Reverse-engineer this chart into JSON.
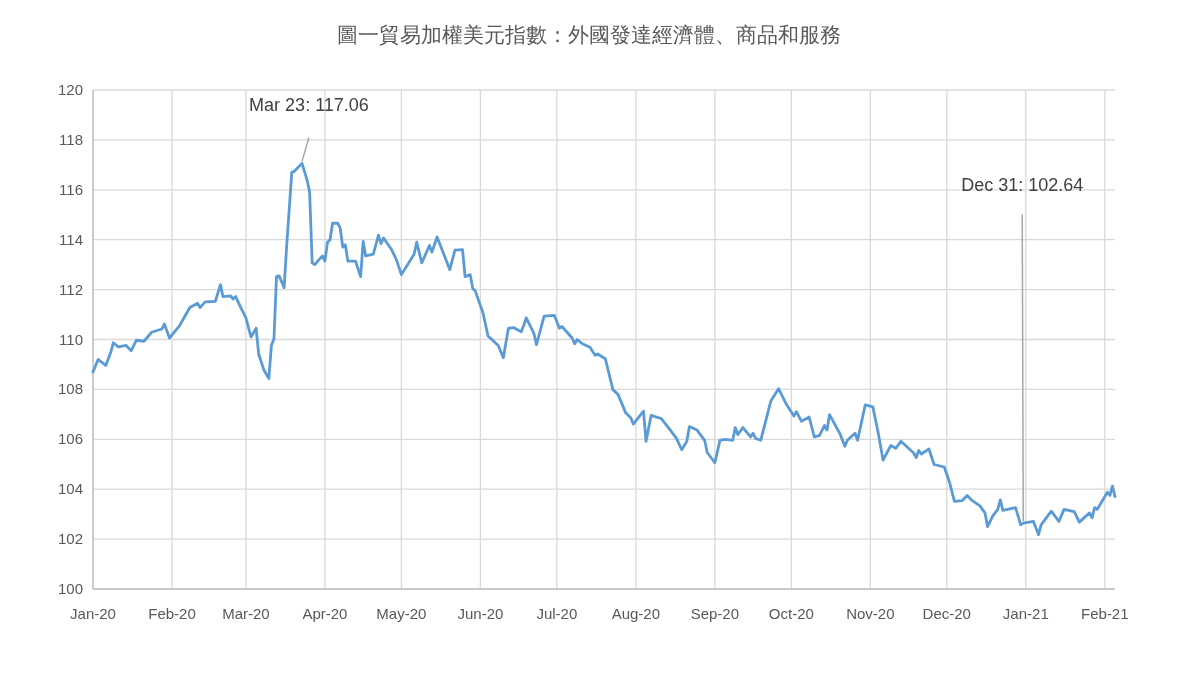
{
  "chart_data": {
    "type": "line",
    "title": "圖一貿易加權美元指數：外國發達經濟體、商品和服務",
    "color": "#5b9bd5",
    "grid": true,
    "x": [
      "2020-01-01",
      "2020-01-03",
      "2020-01-06",
      "2020-01-08",
      "2020-01-09",
      "2020-01-11",
      "2020-01-14",
      "2020-01-16",
      "2020-01-18",
      "2020-01-21",
      "2020-01-24",
      "2020-01-28",
      "2020-01-29",
      "2020-01-31",
      "2020-02-04",
      "2020-02-08",
      "2020-02-11",
      "2020-02-12",
      "2020-02-14",
      "2020-02-18",
      "2020-02-20",
      "2020-02-21",
      "2020-02-24",
      "2020-02-25",
      "2020-02-26",
      "2020-02-28",
      "2020-03-01",
      "2020-03-03",
      "2020-03-05",
      "2020-03-06",
      "2020-03-08",
      "2020-03-10",
      "2020-03-11",
      "2020-03-12",
      "2020-03-13",
      "2020-03-14",
      "2020-03-16",
      "2020-03-17",
      "2020-03-19",
      "2020-03-20",
      "2020-03-23",
      "2020-03-25",
      "2020-03-26",
      "2020-03-27",
      "2020-03-28",
      "2020-03-31",
      "2020-04-01",
      "2020-04-02",
      "2020-04-03",
      "2020-04-04",
      "2020-04-06",
      "2020-04-07",
      "2020-04-08",
      "2020-04-09",
      "2020-04-10",
      "2020-04-13",
      "2020-04-15",
      "2020-04-16",
      "2020-04-17",
      "2020-04-20",
      "2020-04-22",
      "2020-04-23",
      "2020-04-24",
      "2020-04-27",
      "2020-04-29",
      "2020-05-01",
      "2020-05-06",
      "2020-05-07",
      "2020-05-09",
      "2020-05-12",
      "2020-05-13",
      "2020-05-15",
      "2020-05-20",
      "2020-05-22",
      "2020-05-25",
      "2020-05-26",
      "2020-05-28",
      "2020-05-29",
      "2020-05-30",
      "2020-06-02",
      "2020-06-04",
      "2020-06-08",
      "2020-06-10",
      "2020-06-12",
      "2020-06-14",
      "2020-06-17",
      "2020-06-18",
      "2020-06-19",
      "2020-06-22",
      "2020-06-23",
      "2020-06-26",
      "2020-06-30",
      "2020-07-02",
      "2020-07-03",
      "2020-07-07",
      "2020-07-08",
      "2020-07-09",
      "2020-07-11",
      "2020-07-14",
      "2020-07-16",
      "2020-07-17",
      "2020-07-20",
      "2020-07-23",
      "2020-07-25",
      "2020-07-28",
      "2020-07-30",
      "2020-07-31",
      "2020-08-04",
      "2020-08-05",
      "2020-08-07",
      "2020-08-11",
      "2020-08-14",
      "2020-08-17",
      "2020-08-19",
      "2020-08-21",
      "2020-08-22",
      "2020-08-25",
      "2020-08-28",
      "2020-08-29",
      "2020-09-01",
      "2020-09-03",
      "2020-09-05",
      "2020-09-08",
      "2020-09-09",
      "2020-09-10",
      "2020-09-12",
      "2020-09-15",
      "2020-09-16",
      "2020-09-17",
      "2020-09-19",
      "2020-09-23",
      "2020-09-26",
      "2020-09-29",
      "2020-10-02",
      "2020-10-03",
      "2020-10-05",
      "2020-10-08",
      "2020-10-10",
      "2020-10-12",
      "2020-10-14",
      "2020-10-15",
      "2020-10-16",
      "2020-10-20",
      "2020-10-22",
      "2020-10-23",
      "2020-10-26",
      "2020-10-27",
      "2020-10-30",
      "2020-11-02",
      "2020-11-04",
      "2020-11-06",
      "2020-11-09",
      "2020-11-11",
      "2020-11-13",
      "2020-11-18",
      "2020-11-19",
      "2020-11-20",
      "2020-11-21",
      "2020-11-24",
      "2020-11-26",
      "2020-11-30",
      "2020-12-02",
      "2020-12-04",
      "2020-12-07",
      "2020-12-09",
      "2020-12-11",
      "2020-12-14",
      "2020-12-16",
      "2020-12-17",
      "2020-12-19",
      "2020-12-21",
      "2020-12-22",
      "2020-12-23",
      "2020-12-28",
      "2020-12-30",
      "2020-12-31",
      "2021-01-04",
      "2021-01-06",
      "2021-01-07",
      "2021-01-11",
      "2021-01-14",
      "2021-01-16",
      "2021-01-20",
      "2021-01-22",
      "2021-01-26",
      "2021-01-27",
      "2021-01-28",
      "2021-01-29",
      "2021-02-02",
      "2021-02-03",
      "2021-02-04",
      "2021-02-05"
    ],
    "values": [
      108.7,
      109.2,
      108.96,
      109.5,
      109.87,
      109.7,
      109.76,
      109.55,
      109.97,
      109.93,
      110.29,
      110.42,
      110.62,
      110.06,
      110.56,
      111.28,
      111.45,
      111.28,
      111.51,
      111.53,
      112.2,
      111.72,
      111.75,
      111.62,
      111.72,
      111.28,
      110.87,
      110.1,
      110.45,
      109.42,
      108.79,
      108.44,
      109.76,
      110.03,
      112.52,
      112.55,
      112.08,
      113.77,
      116.7,
      116.74,
      117.06,
      116.39,
      115.9,
      113.07,
      113.0,
      113.35,
      113.14,
      113.9,
      114.0,
      114.66,
      114.66,
      114.46,
      113.7,
      113.8,
      113.14,
      113.14,
      112.52,
      113.93,
      113.35,
      113.42,
      114.18,
      113.84,
      114.07,
      113.63,
      113.21,
      112.6,
      113.42,
      113.9,
      113.07,
      113.77,
      113.5,
      114.11,
      112.8,
      113.58,
      113.6,
      112.52,
      112.6,
      112.04,
      111.94,
      111.07,
      110.14,
      109.76,
      109.27,
      110.45,
      110.48,
      110.31,
      110.56,
      110.87,
      110.25,
      109.79,
      110.94,
      110.97,
      110.45,
      110.52,
      110.06,
      109.83,
      110.0,
      109.83,
      109.69,
      109.37,
      109.42,
      109.23,
      107.99,
      107.8,
      107.06,
      106.86,
      106.61,
      107.13,
      105.92,
      106.96,
      106.83,
      106.44,
      106.03,
      105.58,
      105.92,
      106.51,
      106.37,
      105.96,
      105.47,
      105.06,
      105.96,
      106.0,
      105.96,
      106.47,
      106.19,
      106.47,
      106.1,
      106.24,
      106.03,
      105.96,
      107.55,
      108.03,
      107.41,
      106.93,
      107.11,
      106.72,
      106.89,
      106.1,
      106.15,
      106.55,
      106.37,
      106.99,
      106.24,
      105.72,
      105.96,
      106.24,
      105.96,
      107.38,
      107.3,
      106.3,
      105.17,
      105.75,
      105.64,
      105.92,
      105.45,
      105.27,
      105.55,
      105.41,
      105.61,
      104.99,
      104.89,
      104.3,
      103.51,
      103.54,
      103.75,
      103.54,
      103.33,
      103.05,
      102.5,
      102.92,
      103.19,
      103.57,
      103.15,
      103.26,
      102.57,
      102.64,
      102.71,
      102.18,
      102.57,
      103.12,
      102.71,
      103.19,
      103.1,
      102.68,
      103.05,
      102.85,
      103.26,
      103.19,
      103.88,
      103.75,
      104.12,
      103.7
    ],
    "xlim": [
      "2020-01-01",
      "2021-02-05"
    ],
    "xticks": [
      {
        "value": "2020-01-01",
        "label": "Jan-20"
      },
      {
        "value": "2020-02-01",
        "label": "Feb-20"
      },
      {
        "value": "2020-03-01",
        "label": "Mar-20"
      },
      {
        "value": "2020-04-01",
        "label": "Apr-20"
      },
      {
        "value": "2020-05-01",
        "label": "May-20"
      },
      {
        "value": "2020-06-01",
        "label": "Jun-20"
      },
      {
        "value": "2020-07-01",
        "label": "Jul-20"
      },
      {
        "value": "2020-08-01",
        "label": "Aug-20"
      },
      {
        "value": "2020-09-01",
        "label": "Sep-20"
      },
      {
        "value": "2020-10-01",
        "label": "Oct-20"
      },
      {
        "value": "2020-11-01",
        "label": "Nov-20"
      },
      {
        "value": "2020-12-01",
        "label": "Dec-20"
      },
      {
        "value": "2021-01-01",
        "label": "Jan-21"
      },
      {
        "value": "2021-02-01",
        "label": "Feb-21"
      }
    ],
    "ylim": [
      100,
      120
    ],
    "yticks": [
      100,
      102,
      104,
      106,
      108,
      110,
      112,
      114,
      116,
      118,
      120
    ],
    "annotations": [
      {
        "text": "Mar 23: 117.06",
        "x": "2020-03-23",
        "y": 117.06
      },
      {
        "text": "Dec 31: 102.64",
        "x": "2020-12-31",
        "y": 102.64
      }
    ]
  }
}
